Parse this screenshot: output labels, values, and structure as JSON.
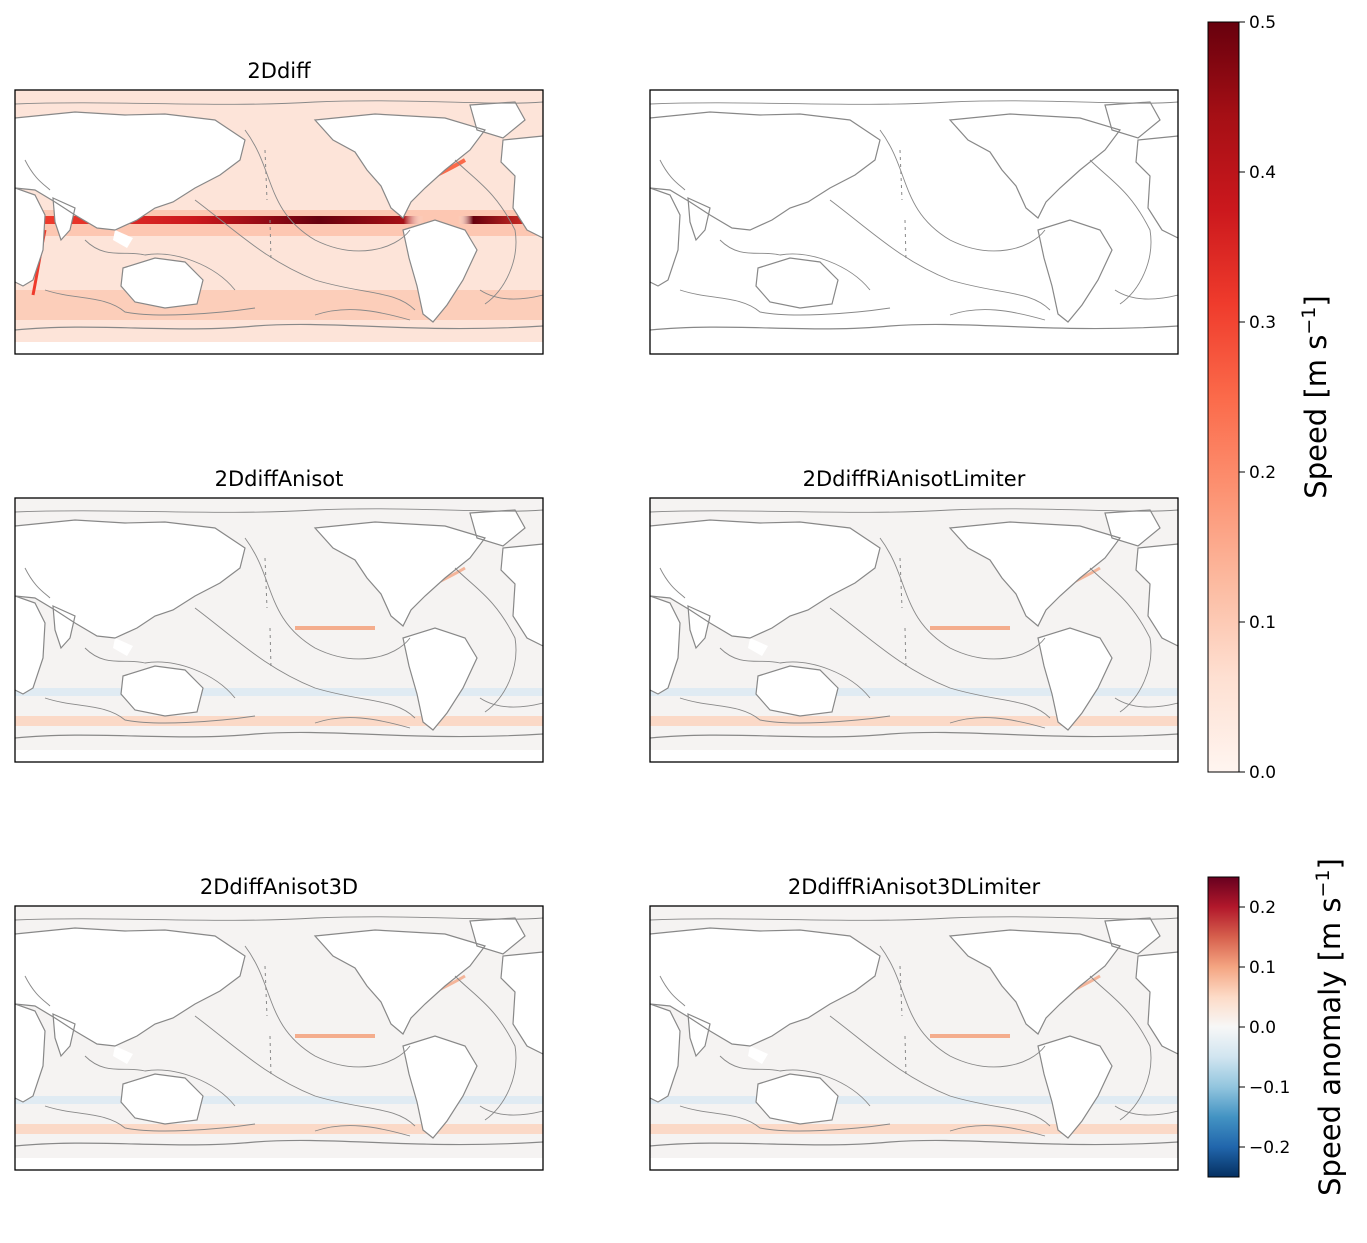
{
  "panels": [
    {
      "title": "2Ddiff",
      "style": "speed"
    },
    {
      "title": "",
      "style": "blank"
    },
    {
      "title": "2DdiffAnisot",
      "style": "anomaly"
    },
    {
      "title": "2DdiffRiAnisotLimiter",
      "style": "anomaly"
    },
    {
      "title": "2DdiffAnisot3D",
      "style": "anomaly"
    },
    {
      "title": "2DdiffRiAnisot3DLimiter",
      "style": "anomaly"
    }
  ],
  "colorbar_speed": {
    "label": "Speed [m s",
    "label_sup": "−1",
    "label_end": "]",
    "colormap": "Reds",
    "range": [
      0.0,
      0.5
    ],
    "ticks": [
      "0.0",
      "0.1",
      "0.2",
      "0.3",
      "0.4",
      "0.5"
    ],
    "tick_values": [
      0.0,
      0.1,
      0.2,
      0.3,
      0.4,
      0.5
    ],
    "colors": [
      "#fff5f0",
      "#fee0d2",
      "#fcbba1",
      "#fc9272",
      "#fb6a4a",
      "#ef3b2c",
      "#cb181d",
      "#a50f15",
      "#67000d"
    ]
  },
  "colorbar_anomaly": {
    "label": "Speed anomaly [m s",
    "label_sup": "−1",
    "label_end": "]",
    "colormap": "RdBu_r",
    "range": [
      -0.25,
      0.25
    ],
    "ticks": [
      "−0.2",
      "−0.1",
      "0.0",
      "0.1",
      "0.2"
    ],
    "tick_values": [
      -0.2,
      -0.1,
      0.0,
      0.1,
      0.2
    ],
    "colors": [
      "#053061",
      "#2166ac",
      "#4393c3",
      "#92c5de",
      "#d1e5f0",
      "#f7f7f7",
      "#fddbc7",
      "#f4a582",
      "#d6604d",
      "#b2182b",
      "#67001f"
    ]
  }
}
